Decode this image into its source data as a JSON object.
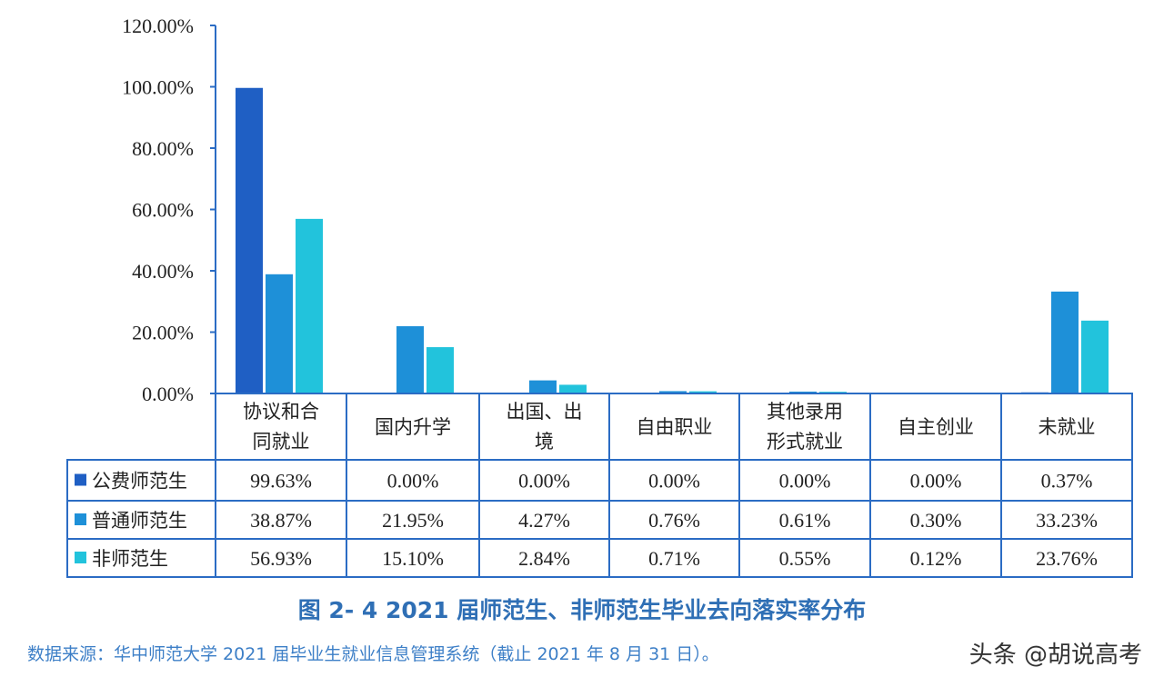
{
  "chart_data": {
    "type": "bar",
    "categories": [
      [
        "协议和合",
        "同就业"
      ],
      [
        "国内升学"
      ],
      [
        "出国、出",
        "境"
      ],
      [
        "自由职业"
      ],
      [
        "其他录用",
        "形式就业"
      ],
      [
        "自主创业"
      ],
      [
        "未就业"
      ]
    ],
    "series": [
      {
        "name": "公费师范生",
        "color": "#1f5fc4",
        "values": [
          99.63,
          0.0,
          0.0,
          0.0,
          0.0,
          0.0,
          0.37
        ],
        "labels": [
          "99.63%",
          "0.00%",
          "0.00%",
          "0.00%",
          "0.00%",
          "0.00%",
          "0.37%"
        ]
      },
      {
        "name": "普通师范生",
        "color": "#1e90d8",
        "values": [
          38.87,
          21.95,
          4.27,
          0.76,
          0.61,
          0.3,
          33.23
        ],
        "labels": [
          "38.87%",
          "21.95%",
          "4.27%",
          "0.76%",
          "0.61%",
          "0.30%",
          "33.23%"
        ]
      },
      {
        "name": "非师范生",
        "color": "#22c3dc",
        "values": [
          56.93,
          15.1,
          2.84,
          0.71,
          0.55,
          0.12,
          23.76
        ],
        "labels": [
          "56.93%",
          "15.10%",
          "2.84%",
          "0.71%",
          "0.55%",
          "0.12%",
          "23.76%"
        ]
      }
    ],
    "ylim": [
      0,
      120
    ],
    "yticks": [
      "0.00%",
      "20.00%",
      "40.00%",
      "60.00%",
      "80.00%",
      "100.00%",
      "120.00%"
    ],
    "grid": false,
    "legend": "data-table",
    "title": "图 2- 4  2021 届师范生、非师范生毕业去向落实率分布"
  },
  "caption": "图 2- 4  2021 届师范生、非师范生毕业去向落实率分布",
  "source": "数据来源：华中师范大学 2021 届毕业生就业信息管理系统（截止 2021 年 8 月 31 日）。",
  "watermark": "头条 @胡说高考",
  "colors": {
    "border": "#2b6cc4",
    "caption": "#2f6fb5",
    "source": "#3d7fc7"
  }
}
